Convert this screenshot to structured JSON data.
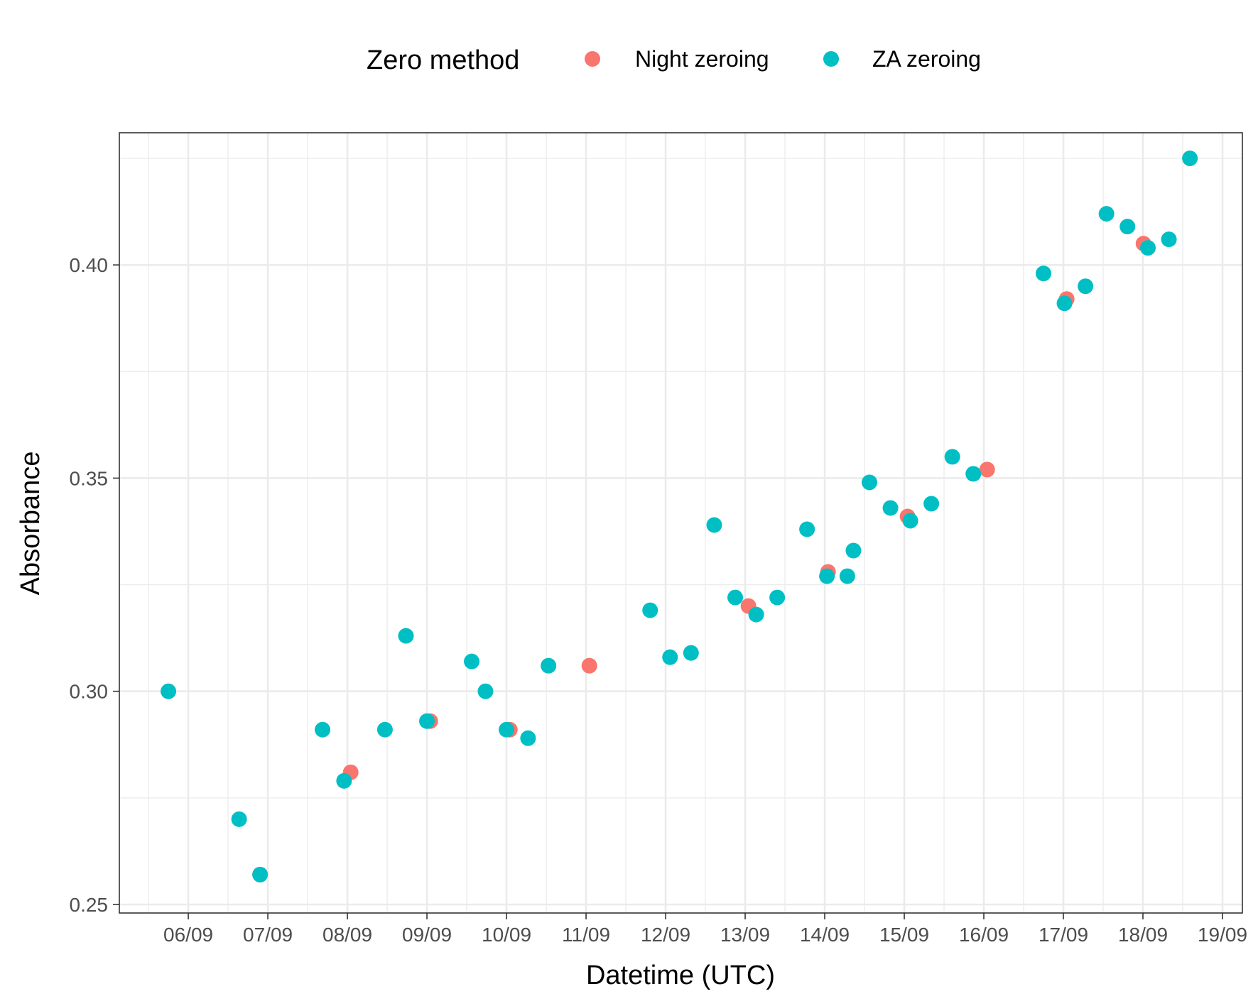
{
  "chart_data": {
    "type": "scatter",
    "title": "",
    "xlabel": "Datetime (UTC)",
    "ylabel": "Absorbance",
    "legend": {
      "title": "Zero method",
      "placement": "top",
      "entries": [
        "Night zeroing",
        "ZA zeroing"
      ]
    },
    "grid": true,
    "x_ticks": [
      "06/09",
      "07/09",
      "08/09",
      "09/09",
      "10/09",
      "11/09",
      "12/09",
      "13/09",
      "14/09",
      "15/09",
      "16/09",
      "17/09",
      "18/09",
      "19/09"
    ],
    "y_ticks": [
      "0.25",
      "0.30",
      "0.35",
      "0.40"
    ],
    "xlim": [
      "2023-09-05T03:12",
      "2023-09-19T06:00"
    ],
    "ylim": [
      0.248,
      0.431
    ],
    "colors": {
      "Night zeroing": "#F8766D",
      "ZA zeroing": "#00BFC4"
    },
    "series": [
      {
        "name": "Night zeroing",
        "points": [
          {
            "x": "2023-09-06T21:40",
            "y": 0.257
          },
          {
            "x": "2023-09-08T01:00",
            "y": 0.281
          },
          {
            "x": "2023-09-09T01:00",
            "y": 0.293
          },
          {
            "x": "2023-09-10T01:00",
            "y": 0.291
          },
          {
            "x": "2023-09-11T01:00",
            "y": 0.306
          },
          {
            "x": "2023-09-13T01:00",
            "y": 0.32
          },
          {
            "x": "2023-09-14T01:00",
            "y": 0.328
          },
          {
            "x": "2023-09-15T01:00",
            "y": 0.341
          },
          {
            "x": "2023-09-16T01:00",
            "y": 0.352
          },
          {
            "x": "2023-09-17T01:00",
            "y": 0.392
          },
          {
            "x": "2023-09-18T00:10",
            "y": 0.405
          }
        ]
      },
      {
        "name": "ZA zeroing",
        "points": [
          {
            "x": "2023-09-05T18:00",
            "y": 0.3
          },
          {
            "x": "2023-09-06T15:20",
            "y": 0.27
          },
          {
            "x": "2023-09-06T21:40",
            "y": 0.257
          },
          {
            "x": "2023-09-07T16:30",
            "y": 0.291
          },
          {
            "x": "2023-09-07T23:00",
            "y": 0.279
          },
          {
            "x": "2023-09-08T11:20",
            "y": 0.291
          },
          {
            "x": "2023-09-08T17:40",
            "y": 0.313
          },
          {
            "x": "2023-09-09T00:00",
            "y": 0.293
          },
          {
            "x": "2023-09-09T13:30",
            "y": 0.307
          },
          {
            "x": "2023-09-09T17:40",
            "y": 0.3
          },
          {
            "x": "2023-09-10T00:00",
            "y": 0.291
          },
          {
            "x": "2023-09-10T06:30",
            "y": 0.289
          },
          {
            "x": "2023-09-10T12:40",
            "y": 0.306
          },
          {
            "x": "2023-09-11T19:20",
            "y": 0.319
          },
          {
            "x": "2023-09-12T01:20",
            "y": 0.308
          },
          {
            "x": "2023-09-12T07:40",
            "y": 0.309
          },
          {
            "x": "2023-09-12T14:40",
            "y": 0.339
          },
          {
            "x": "2023-09-12T21:00",
            "y": 0.322
          },
          {
            "x": "2023-09-13T03:20",
            "y": 0.318
          },
          {
            "x": "2023-09-13T09:40",
            "y": 0.322
          },
          {
            "x": "2023-09-13T18:40",
            "y": 0.338
          },
          {
            "x": "2023-09-14T00:40",
            "y": 0.327
          },
          {
            "x": "2023-09-14T06:50",
            "y": 0.327
          },
          {
            "x": "2023-09-14T08:40",
            "y": 0.333
          },
          {
            "x": "2023-09-14T13:30",
            "y": 0.349
          },
          {
            "x": "2023-09-14T19:50",
            "y": 0.343
          },
          {
            "x": "2023-09-15T01:50",
            "y": 0.34
          },
          {
            "x": "2023-09-15T08:10",
            "y": 0.344
          },
          {
            "x": "2023-09-15T14:30",
            "y": 0.355
          },
          {
            "x": "2023-09-15T20:50",
            "y": 0.351
          },
          {
            "x": "2023-09-16T18:00",
            "y": 0.398
          },
          {
            "x": "2023-09-17T00:20",
            "y": 0.391
          },
          {
            "x": "2023-09-17T06:40",
            "y": 0.395
          },
          {
            "x": "2023-09-17T13:00",
            "y": 0.412
          },
          {
            "x": "2023-09-17T19:20",
            "y": 0.409
          },
          {
            "x": "2023-09-18T01:30",
            "y": 0.404
          },
          {
            "x": "2023-09-18T07:50",
            "y": 0.406
          },
          {
            "x": "2023-09-18T14:10",
            "y": 0.425
          }
        ]
      }
    ]
  }
}
